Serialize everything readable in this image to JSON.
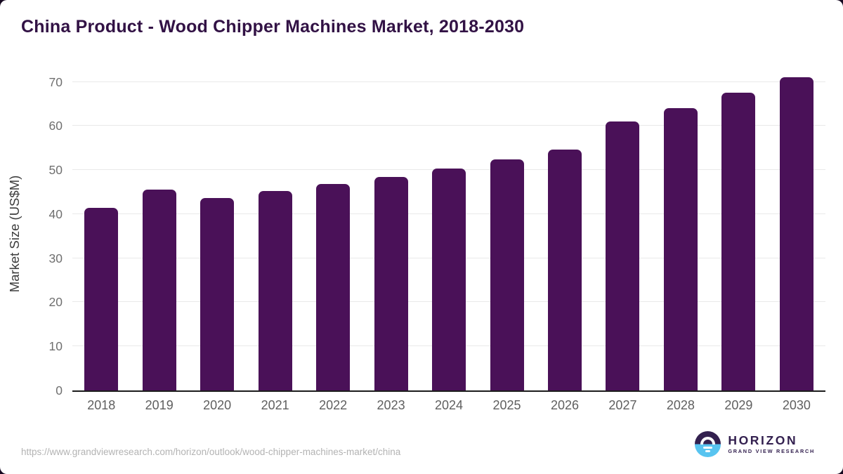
{
  "page": {
    "title": "China Product - Wood Chipper Machines Market, 2018-2030",
    "source_url": "https://www.grandviewresearch.com/horizon/outlook/wood-chipper-machines-market/china"
  },
  "logo": {
    "name": "HORIZON",
    "subtitle": "GRAND VIEW RESEARCH"
  },
  "colors": {
    "bar": "#4a1158",
    "title_text": "#321245",
    "tick_label": "#6f6f6f",
    "gridline": "#e9e9e9",
    "axis_line": "#1c1c1c",
    "footer_url": "#b3b3b3",
    "logo_purple": "#33204f",
    "logo_blue": "#58c4f0",
    "card_background": "#ffffff",
    "corner_background": "#150820"
  },
  "chart_data": {
    "type": "bar",
    "title": "China Product - Wood Chipper Machines Market, 2018-2030",
    "categories": [
      "2018",
      "2019",
      "2020",
      "2021",
      "2022",
      "2023",
      "2024",
      "2025",
      "2026",
      "2027",
      "2028",
      "2029",
      "2030"
    ],
    "values": [
      41.4,
      45.6,
      43.7,
      45.2,
      46.9,
      48.4,
      50.3,
      52.4,
      54.7,
      61.0,
      64.1,
      67.5,
      71.1
    ],
    "xlabel": "",
    "ylabel": "Market Size (US$M)",
    "yticks": [
      0,
      10,
      20,
      30,
      40,
      50,
      60,
      70
    ],
    "ylim": [
      0,
      72.5
    ],
    "grid": "horizontal",
    "legend": "none",
    "bar_color": "#4a1158"
  }
}
